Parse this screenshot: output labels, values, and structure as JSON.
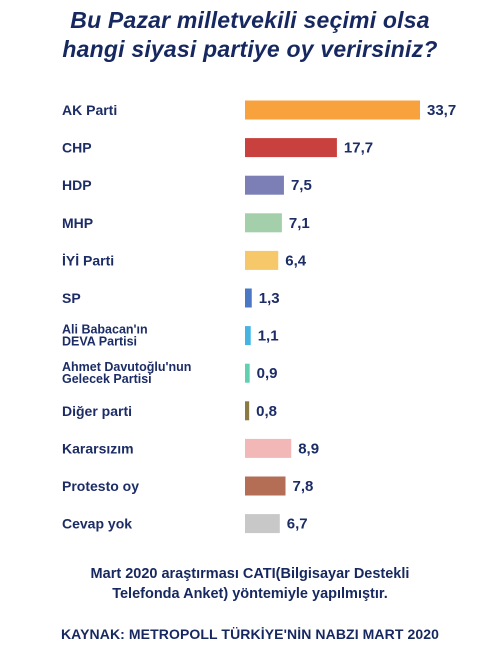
{
  "title_line1": "Bu Pazar milletvekili seçimi olsa",
  "title_line2": "hangi siyasi partiye oy verirsiniz?",
  "note_line1": "Mart 2020 araştırması CATI(Bilgisayar Destekli",
  "note_line2": "Telefonda Anket) yöntemiyle yapılmıştır.",
  "source": "KAYNAK: METROPOLL TÜRKİYE'NİN NABZI MART 2020",
  "chart_data": {
    "type": "bar",
    "orientation": "horizontal",
    "title": "Bu Pazar milletvekili seçimi olsa hangi siyasi partiye oy verirsiniz?",
    "categories": [
      [
        "AK Parti"
      ],
      [
        "CHP"
      ],
      [
        "HDP"
      ],
      [
        "MHP"
      ],
      [
        "İYİ Parti"
      ],
      [
        "SP"
      ],
      [
        "Ali Babacan'ın",
        "DEVA Partisi"
      ],
      [
        "Ahmet Davutoğlu'nun",
        "Gelecek Partisi"
      ],
      [
        "Diğer parti"
      ],
      [
        "Kararsızım"
      ],
      [
        "Protesto oy"
      ],
      [
        "Cevap yok"
      ]
    ],
    "values": [
      33.7,
      17.7,
      7.5,
      7.1,
      6.4,
      1.3,
      1.1,
      0.9,
      0.8,
      8.9,
      7.8,
      6.7
    ],
    "value_labels": [
      "33,7",
      "17,7",
      "7,5",
      "7,1",
      "6,4",
      "1,3",
      "1,1",
      "0,9",
      "0,8",
      "8,9",
      "7,8",
      "6,7"
    ],
    "colors": [
      "#f7a23c",
      "#c9413e",
      "#7b7fb5",
      "#a3cfaa",
      "#f6c86a",
      "#4a78c4",
      "#44b4e2",
      "#5fd0b0",
      "#8a7a44",
      "#f2b8b8",
      "#b36e55",
      "#c8c8c8"
    ],
    "xlabel": "",
    "ylabel": "",
    "grid": false,
    "legend": false
  }
}
